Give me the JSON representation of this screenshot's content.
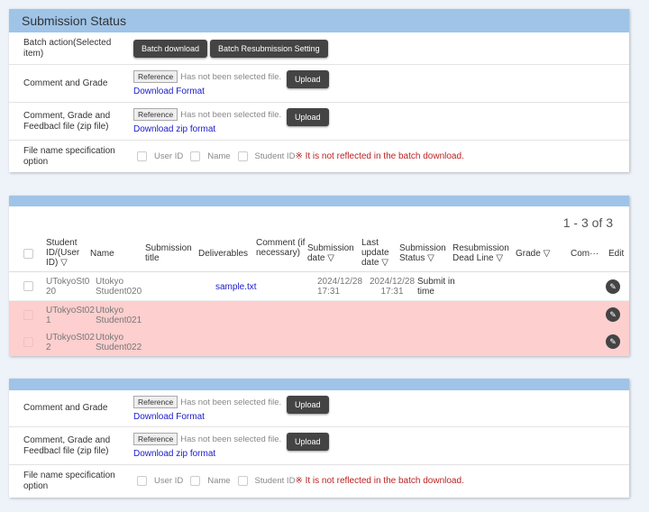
{
  "status_panel": {
    "title": "Submission Status",
    "batch": {
      "label": "Batch action(Selected item)",
      "download": "Batch download",
      "resubmission": "Batch Resubmission Setting"
    },
    "comment_grade": {
      "label": "Comment and Grade",
      "reference": "Reference",
      "no_file": "Has not been selected file.",
      "upload": "Upload",
      "link": "Download Format"
    },
    "comment_zip": {
      "label": "Comment, Grade and Feedbacl file (zip file)",
      "reference": "Reference",
      "no_file": "Has not been selected file.",
      "upload": "Upload",
      "link": "Download zip format"
    },
    "filename": {
      "label": "File name specification option",
      "options": [
        "User ID",
        "Name",
        "Student ID"
      ],
      "warning": "※ It is not reflected in the batch download."
    }
  },
  "table": {
    "pager": "1 - 3 of 3",
    "headers": [
      "Student ID/(User ID) ▽",
      "Name",
      "Submission title",
      "Deliverables",
      "Comment (if necessary)",
      "Submission date ▽",
      "Last update date ▽",
      "Submission Status ▽",
      "Resubmission Dead Line ▽",
      "Grade ▽",
      "Com···",
      "Edit"
    ],
    "rows": [
      {
        "id": "UTokyoSt0 20",
        "name": "Utokyo Student020",
        "deliverable": "sample.txt",
        "submitted": "2024/12/28 17:31",
        "updated": "2024/12/28 17:31",
        "status": "Submit in time",
        "highlight": false
      },
      {
        "id": "UTokyoSt02 1",
        "name": "Utokyo Student021",
        "deliverable": "",
        "submitted": "",
        "updated": "",
        "status": "",
        "highlight": true
      },
      {
        "id": "UTokyoSt02 2",
        "name": "Utokyo Student022",
        "deliverable": "",
        "submitted": "",
        "updated": "",
        "status": "",
        "highlight": true
      }
    ],
    "highlight_color": "#fdcfcf"
  },
  "bottom_panel": {
    "comment_grade": {
      "label": "Comment and Grade",
      "reference": "Reference",
      "no_file": "Has not been selected file.",
      "upload": "Upload",
      "link": "Download Format"
    },
    "comment_zip": {
      "label": "Comment, Grade and Feedbacl file (zip file)",
      "reference": "Reference",
      "no_file": "Has not been selected file.",
      "upload": "Upload",
      "link": "Download zip format"
    },
    "filename": {
      "label": "File name specification option",
      "options": [
        "User ID",
        "Name",
        "Student ID"
      ],
      "warning": "※ It is not reflected in the batch download."
    }
  }
}
